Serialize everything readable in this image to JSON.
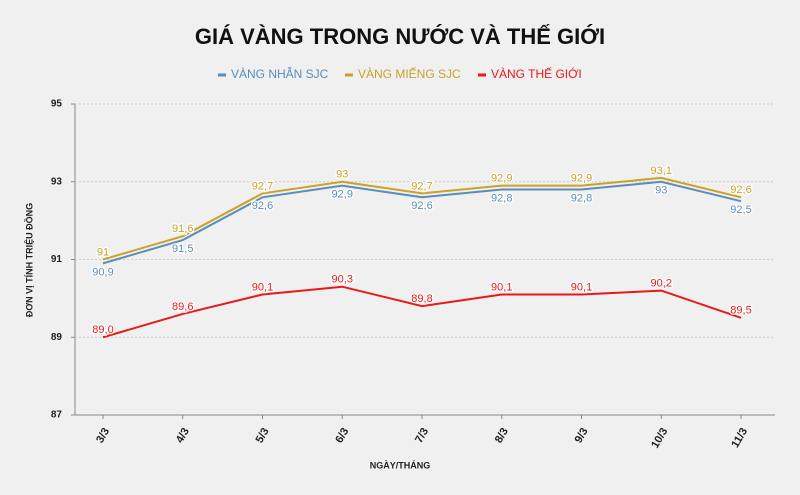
{
  "chart_data": {
    "type": "line",
    "title": "GIÁ VÀNG TRONG NƯỚC VÀ THẾ GIỚI",
    "x_label": "NGÀY/THÁNG",
    "y_label": "ĐƠN VỊ TÍNH TRIỆU ĐỒNG",
    "categories": [
      "3/3",
      "4/3",
      "5/3",
      "6/3",
      "7/3",
      "8/3",
      "9/3",
      "10/3",
      "11/3"
    ],
    "series": [
      {
        "name": "VÀNG NHẪN SJC",
        "color": "#5b8db8",
        "label_side": "below",
        "values": [
          90.9,
          91.5,
          92.6,
          92.9,
          92.6,
          92.8,
          92.8,
          93,
          92.5
        ],
        "value_labels": [
          "90,9",
          "91,5",
          "92,6",
          "92,9",
          "92,6",
          "92,8",
          "92,8",
          "93",
          "92,5"
        ]
      },
      {
        "name": "VÀNG MIẾNG SJC",
        "color": "#c9a227",
        "label_side": "above",
        "values": [
          91,
          91.6,
          92.7,
          93,
          92.7,
          92.9,
          92.9,
          93.1,
          92.6
        ],
        "value_labels": [
          "91",
          "91,6",
          "92,7",
          "93",
          "92,7",
          "92,9",
          "92,9",
          "93,1",
          "92,6"
        ]
      },
      {
        "name": "VÀNG THẾ GIỚI",
        "color": "#e8191a",
        "label_side": "above",
        "values": [
          89.0,
          89.6,
          90.1,
          90.3,
          89.8,
          90.1,
          90.1,
          90.2,
          89.5
        ],
        "value_labels": [
          "89,0",
          "89,6",
          "90,1",
          "90,3",
          "89,8",
          "90,1",
          "90,1",
          "90,2",
          "89,5"
        ]
      }
    ],
    "ylim": [
      87,
      95
    ],
    "yticks": [
      87,
      89,
      91,
      93,
      95
    ],
    "grid": true
  }
}
